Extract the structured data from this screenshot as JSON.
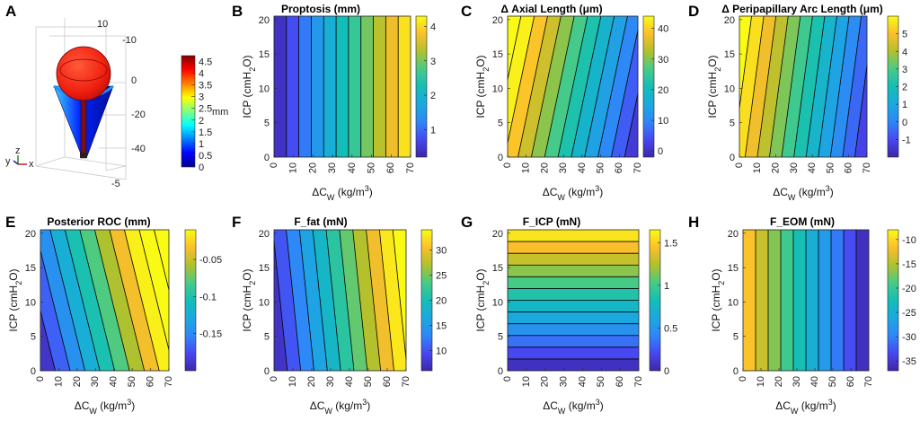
{
  "figure": {
    "panel_a": {
      "label": "A",
      "title": "3D finite element eye model",
      "colorbar_ticks": [
        "4.5",
        "4",
        "3.5",
        "3",
        "2.5",
        "2",
        "1.5",
        "1",
        "0.5",
        "0"
      ],
      "unit": "mm",
      "axis_ticks_top": [
        "10",
        "-10"
      ],
      "axis_ticks_side": [
        "0",
        "-20",
        "-40"
      ],
      "axis_ticks_bottom": [
        "-5"
      ],
      "triad": {
        "x": "x",
        "y": "y",
        "z": "z"
      }
    }
  },
  "colors": {
    "parula_low": "#3e26a8",
    "parula_mid": "#13beb7",
    "parula_high": "#f9fb15"
  },
  "chart_data": [
    {
      "label": "B",
      "type": "heatmap",
      "title": "Proptosis (mm)",
      "xlabel": "ΔC_W (kg/m^3)",
      "ylabel": "ICP (cmH2O)",
      "xlim": [
        0,
        70
      ],
      "ylim": [
        0,
        20.5
      ],
      "xticks": [
        0,
        10,
        20,
        30,
        40,
        50,
        60,
        70
      ],
      "yticks": [
        0,
        5,
        10,
        15,
        20
      ],
      "clim": [
        0.2,
        4.3
      ],
      "cticks": [
        1,
        2,
        3,
        4
      ],
      "surface": {
        "at_x0_y0": 0.2,
        "dz_dx": 0.058,
        "dz_dy": 0.0
      },
      "n_levels": 11
    },
    {
      "label": "C",
      "type": "heatmap",
      "title": "Δ Axial Length (μm)",
      "xlabel": "ΔC_W (kg/m^3)",
      "ylabel": "ICP (cmH2O)",
      "xlim": [
        0,
        70
      ],
      "ylim": [
        0,
        20.5
      ],
      "xticks": [
        0,
        10,
        20,
        30,
        40,
        50,
        60,
        70
      ],
      "yticks": [
        0,
        5,
        10,
        15,
        20
      ],
      "clim": [
        -2,
        44
      ],
      "cticks": [
        0,
        10,
        20,
        30,
        40
      ],
      "surface": {
        "at_x0_y0": 40,
        "dz_dx": -0.58,
        "dz_dy": 0.45
      },
      "n_levels": 12
    },
    {
      "label": "D",
      "type": "heatmap",
      "title": "Δ Peripapillary Arc Length (μm)",
      "xlabel": "ΔC_W (kg/m^3)",
      "ylabel": "ICP (cmH2O)",
      "xlim": [
        0,
        70
      ],
      "ylim": [
        0,
        20.5
      ],
      "xticks": [
        0,
        10,
        20,
        30,
        40,
        50,
        60,
        70
      ],
      "yticks": [
        0,
        5,
        10,
        15,
        20
      ],
      "clim": [
        -2,
        6
      ],
      "cticks": [
        -1,
        0,
        1,
        2,
        3,
        4,
        5
      ],
      "surface": {
        "at_x0_y0": 5.5,
        "dz_dx": -0.1,
        "dz_dy": 0.05
      },
      "n_levels": 12
    },
    {
      "label": "E",
      "type": "heatmap",
      "title": "Posterior ROC (mm)",
      "xlabel": "ΔC_W (kg/m^3)",
      "ylabel": "ICP (cmH2O)",
      "xlim": [
        0,
        70
      ],
      "ylim": [
        0,
        20.5
      ],
      "xticks": [
        0,
        10,
        20,
        30,
        40,
        50,
        60,
        70
      ],
      "yticks": [
        0,
        5,
        10,
        15,
        20
      ],
      "clim": [
        -0.2,
        -0.01
      ],
      "cticks": [
        -0.15,
        -0.1,
        -0.05
      ],
      "surface": {
        "at_x0_y0": -0.2,
        "dz_dx": 0.0027,
        "dz_dy": 0.0025
      },
      "n_levels": 11
    },
    {
      "label": "F",
      "type": "heatmap",
      "title": "F_fat (mN)",
      "xlabel": "ΔC_W (kg/m^3)",
      "ylabel": "ICP (cmH2O)",
      "xlim": [
        0,
        70
      ],
      "ylim": [
        0,
        20.5
      ],
      "xticks": [
        0,
        10,
        20,
        30,
        40,
        50,
        60,
        70
      ],
      "yticks": [
        0,
        5,
        10,
        15,
        20
      ],
      "clim": [
        6,
        34
      ],
      "cticks": [
        10,
        15,
        20,
        25,
        30
      ],
      "surface": {
        "at_x0_y0": 6,
        "dz_dx": 0.4,
        "dz_dy": 0.15
      },
      "n_levels": 11
    },
    {
      "label": "G",
      "type": "heatmap",
      "title": "F_ICP (mN)",
      "xlabel": "ΔC_W (kg/m^3)",
      "ylabel": "ICP (cmH2O)",
      "xlim": [
        0,
        70
      ],
      "ylim": [
        0,
        20.5
      ],
      "xticks": [
        0,
        10,
        20,
        30,
        40,
        50,
        60,
        70
      ],
      "yticks": [
        0,
        5,
        10,
        15,
        20
      ],
      "clim": [
        0,
        1.65
      ],
      "cticks": [
        0,
        0.5,
        1,
        1.5
      ],
      "surface": {
        "at_x0_y0": 0,
        "dz_dx": 0.0,
        "dz_dy": 0.08
      },
      "n_levels": 12
    },
    {
      "label": "H",
      "type": "heatmap",
      "title": "F_EOM (mN)",
      "xlabel": "ΔC_W (kg/m^3)",
      "ylabel": "ICP (cmH2O)",
      "xlim": [
        0,
        70
      ],
      "ylim": [
        0,
        20.5
      ],
      "xticks": [
        0,
        10,
        20,
        30,
        40,
        50,
        60,
        70
      ],
      "yticks": [
        0,
        5,
        10,
        15,
        20
      ],
      "clim": [
        -37,
        -8
      ],
      "cticks": [
        -35,
        -30,
        -25,
        -20,
        -15,
        -10
      ],
      "surface": {
        "at_x0_y0": -10,
        "dz_dx": -0.39,
        "dz_dy": 0.0
      },
      "n_levels": 10
    }
  ]
}
